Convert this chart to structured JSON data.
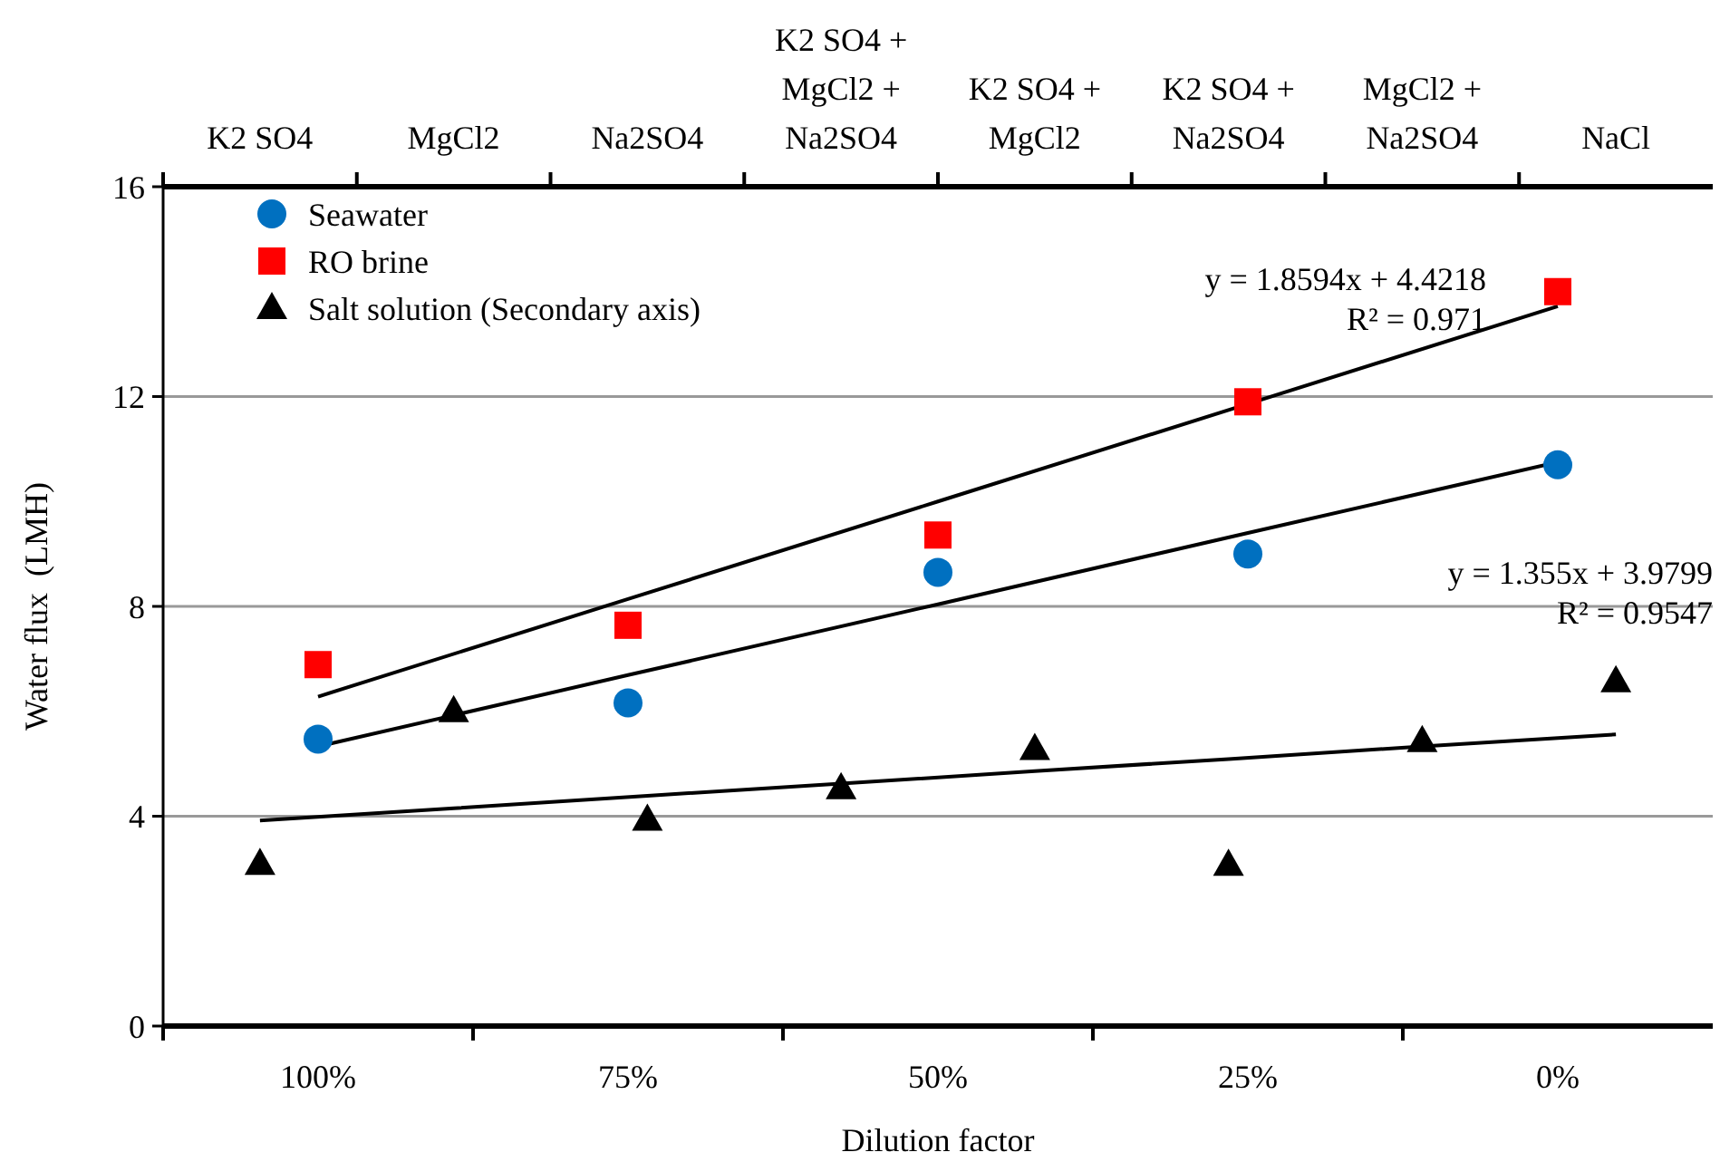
{
  "chart_data": [
    {
      "type": "scatter",
      "xlabel": "Dilution factor",
      "ylabel": "Water flux  (LMH)",
      "categories": [
        "100%",
        "75%",
        "50%",
        "25%",
        "0%"
      ],
      "ylim": [
        0,
        16
      ],
      "yticks": [
        0,
        4,
        8,
        12,
        16
      ],
      "grid": "y",
      "legend": "top left",
      "series": [
        {
          "name": "Seawater",
          "marker": "circle",
          "color": "#0070c0",
          "values": [
            5.47,
            6.16,
            8.65,
            9.0,
            10.7
          ]
        },
        {
          "name": "RO brine",
          "marker": "square",
          "color": "#ff0000",
          "values": [
            6.89,
            7.64,
            9.36,
            11.9,
            14.0
          ]
        },
        {
          "type": "line",
          "color": "#000000",
          "values": [
            5.33,
            6.69,
            8.04,
            9.4,
            10.75
          ]
        },
        {
          "type": "line",
          "color": "#000000",
          "values": [
            6.28,
            8.14,
            10.0,
            11.86,
            13.72
          ]
        }
      ],
      "annotations": [
        "y = 1.8594x + 4.4218\nR² = 0.971",
        "y = 1.355x + 3.9799\nR² = 0.9547"
      ]
    },
    {
      "type": "scatter",
      "categories": [
        "K2 SO4",
        "MgCl2",
        "Na2SO4",
        "K2 SO4 + MgCl2 + Na2SO4",
        "K2 SO4 + MgCl2",
        "K2 SO4 + Na2SO4",
        "MgCl2 + Na2SO4",
        "NaCl"
      ],
      "ylim": [
        0,
        16
      ],
      "tick_labels": "x",
      "legend": "top left",
      "series": [
        {
          "name": "Salt solution (Secondary axis)",
          "marker": "triangle",
          "color": "#000000",
          "values": [
            3.09,
            6.0,
            3.93,
            4.53,
            5.28,
            3.07,
            5.43,
            6.57
          ]
        },
        {
          "type": "line",
          "color": "#000000",
          "values": [
            3.92,
            4.15,
            4.39,
            4.62,
            4.86,
            5.09,
            5.33,
            5.56
          ]
        }
      ]
    }
  ]
}
